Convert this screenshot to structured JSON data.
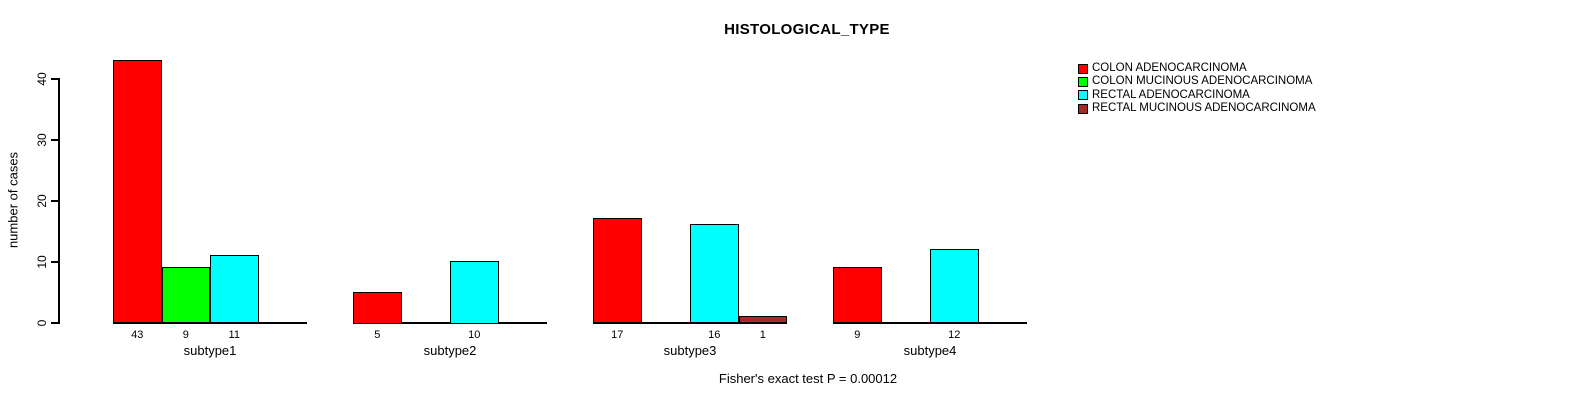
{
  "chart_data": {
    "type": "bar",
    "title": "HISTOLOGICAL_TYPE",
    "ylabel": "number of cases",
    "yticks": [
      0,
      10,
      20,
      30,
      40
    ],
    "ylim": [
      0,
      43
    ],
    "grid": false,
    "legend_position": "top-right",
    "axis_color": "#000000",
    "background_color": "#ffffff",
    "groups": [
      "subtype1",
      "subtype2",
      "subtype3",
      "subtype4"
    ],
    "series": [
      {
        "name": "COLON ADENOCARCINOMA",
        "color": "#ff0000",
        "values": [
          43,
          5,
          17,
          9
        ]
      },
      {
        "name": "COLON MUCINOUS ADENOCARCINOMA",
        "color": "#00ff00",
        "values": [
          9,
          0,
          0,
          0
        ]
      },
      {
        "name": "RECTAL ADENOCARCINOMA",
        "color": "#00ffff",
        "values": [
          11,
          10,
          16,
          12
        ]
      },
      {
        "name": "RECTAL MUCINOUS ADENOCARCINOMA",
        "color": "#a52a2a",
        "values": [
          0,
          0,
          1,
          0
        ]
      }
    ],
    "bar_value_labels_visible": "only non-zero bars are drawn and labeled",
    "footnote": "Fisher's exact test P = 0.00012"
  }
}
